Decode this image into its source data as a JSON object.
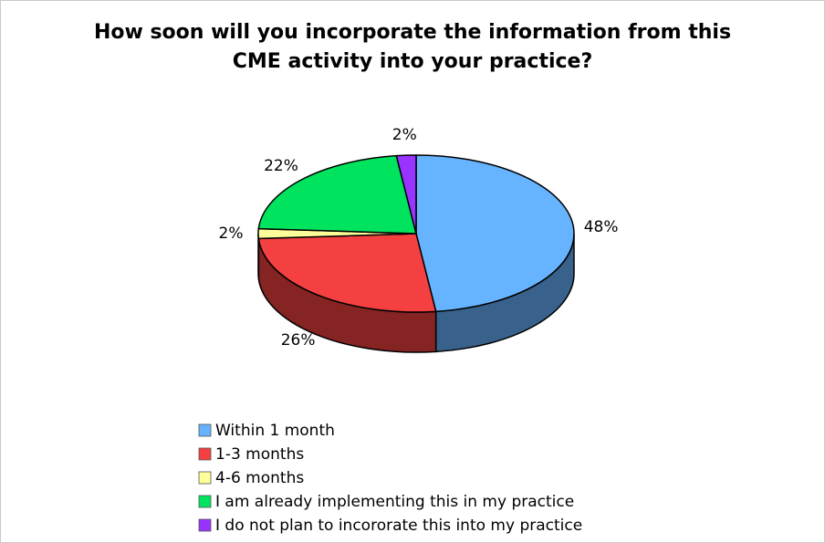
{
  "chart_data": {
    "type": "pie",
    "title": "How soon will you incorporate the information from this CME activity into your practice?",
    "categories": [
      "Within 1 month",
      "1-3 months",
      "4-6 months",
      "I am already implementing this in my practice",
      "I do not plan to incororate this into my practice"
    ],
    "values": [
      48,
      26,
      2,
      22,
      2
    ],
    "value_labels": [
      "48%",
      "26%",
      "2%",
      "22%",
      "2%"
    ],
    "colors": [
      "#66b3ff",
      "#f44040",
      "#ffff99",
      "#00e35f",
      "#9933ff"
    ],
    "legend": "bottom"
  }
}
